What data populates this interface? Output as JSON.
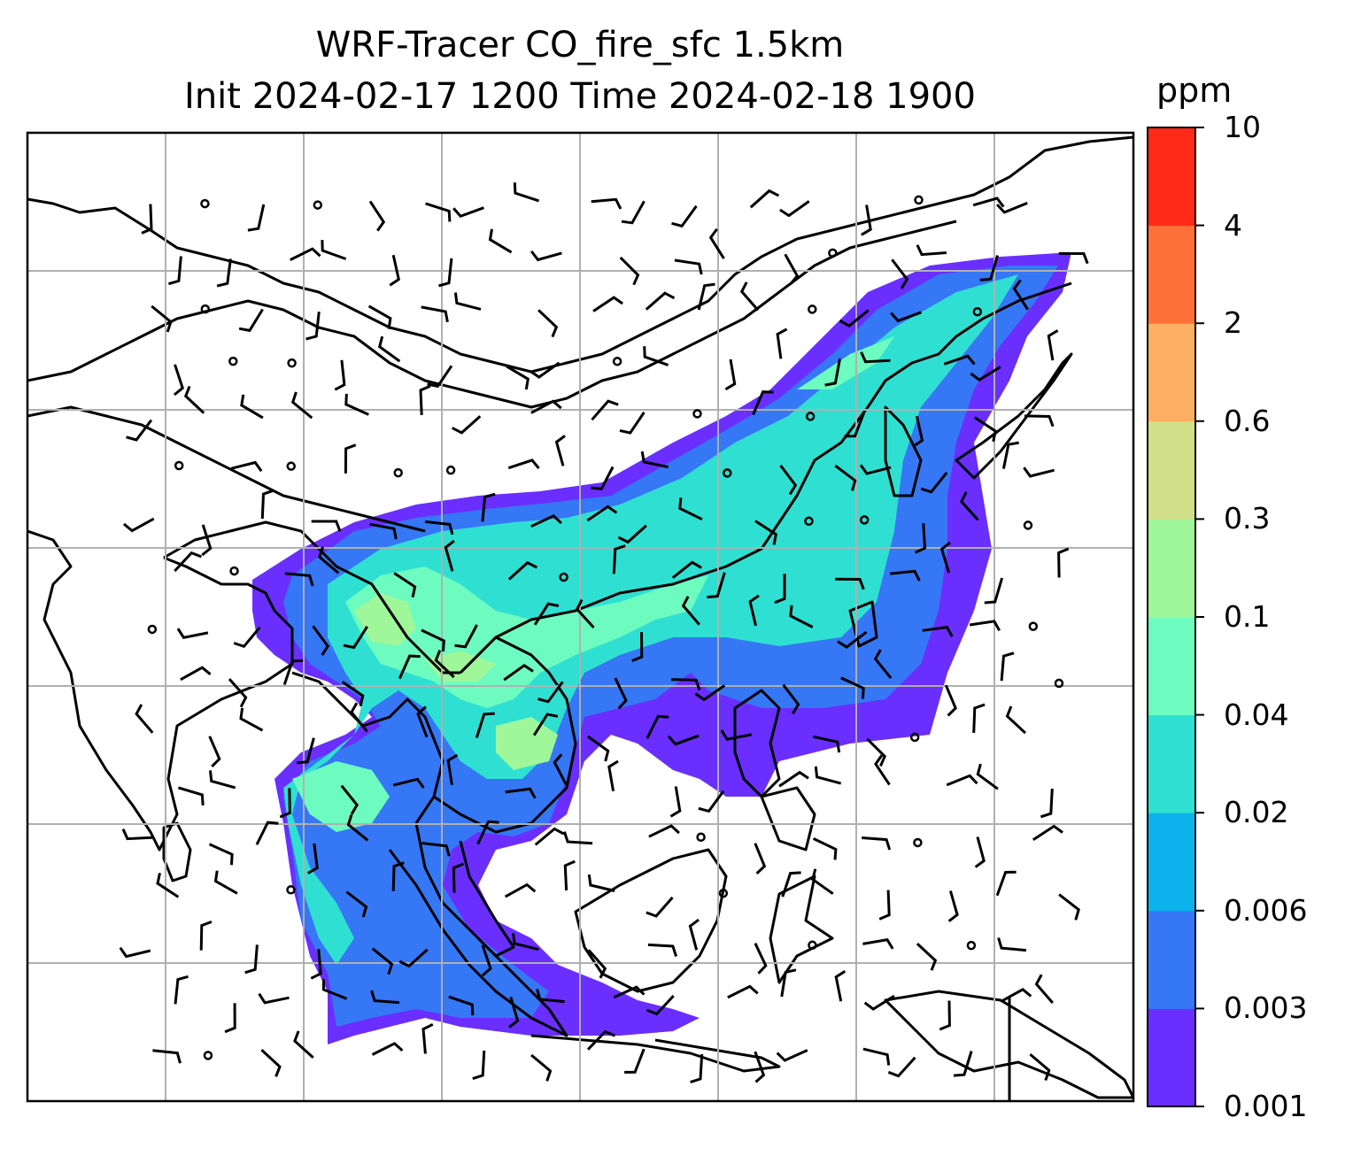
{
  "title_line1": "WRF-Tracer CO_fire_sfc 1.5km",
  "title_line2": "Init 2024-02-17 1200 Time 2024-02-18 1900",
  "colorbar": {
    "unit": "ppm",
    "ticks": [
      "0.001",
      "0.003",
      "0.006",
      "0.02",
      "0.04",
      "0.1",
      "0.3",
      "0.6",
      "2",
      "4",
      "10"
    ],
    "colors": [
      "#6a2eff",
      "#3577f5",
      "#0cb2eb",
      "#2fe0d2",
      "#6dfbc0",
      "#9ff79a",
      "#d2e08a",
      "#fcaf62",
      "#fe7038",
      "#ff2a18"
    ]
  },
  "map": {
    "grid": "on",
    "coastline_color": "#000000",
    "grid_color": "#b0b0b0",
    "wind_barbs": "on"
  }
}
